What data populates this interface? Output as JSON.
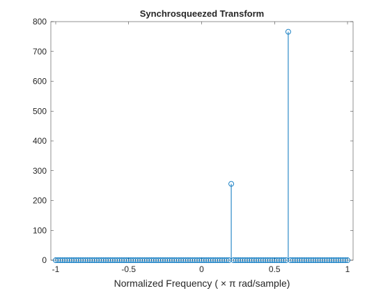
{
  "chart_data": {
    "type": "stem",
    "title": "Synchrosqueezed Transform",
    "xlabel": "Normalized  Frequency  ( × π  rad/sample)",
    "ylabel": "",
    "xlim": [
      -1,
      1
    ],
    "ylim": [
      0,
      800
    ],
    "xticks": [
      -1,
      -0.5,
      0,
      0.5,
      1
    ],
    "xtick_labels": [
      "-1",
      "-0.5",
      "0",
      "0.5",
      "1"
    ],
    "yticks": [
      0,
      100,
      200,
      300,
      400,
      500,
      600,
      700,
      800
    ],
    "ytick_labels": [
      "0",
      "100",
      "200",
      "300",
      "400",
      "500",
      "600",
      "700",
      "800"
    ],
    "grid": false,
    "series": [
      {
        "marker": "circle-open",
        "color": "#0072BD",
        "x_start": -1,
        "x_end": 1,
        "x_step": 0.015625,
        "baseline_value": 0,
        "peaks": [
          {
            "x": 0.2,
            "y": 256
          },
          {
            "x": 0.6,
            "y": 766
          }
        ]
      }
    ]
  }
}
